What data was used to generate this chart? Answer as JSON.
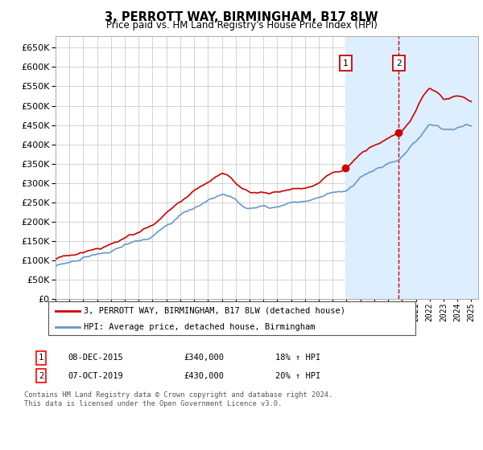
{
  "title": "3, PERROTT WAY, BIRMINGHAM, B17 8LW",
  "subtitle": "Price paid vs. HM Land Registry's House Price Index (HPI)",
  "ylim": [
    0,
    680000
  ],
  "yticks": [
    0,
    50000,
    100000,
    150000,
    200000,
    250000,
    300000,
    350000,
    400000,
    450000,
    500000,
    550000,
    600000,
    650000
  ],
  "xlim_min": 1995,
  "xlim_max": 2025.5,
  "sale1_x": 2015.92,
  "sale1_y": 340000,
  "sale2_x": 2019.77,
  "sale2_y": 430000,
  "legend_line1": "3, PERROTT WAY, BIRMINGHAM, B17 8LW (detached house)",
  "legend_line2": "HPI: Average price, detached house, Birmingham",
  "table_row1": [
    "1",
    "08-DEC-2015",
    "£340,000",
    "18% ↑ HPI"
  ],
  "table_row2": [
    "2",
    "07-OCT-2019",
    "£430,000",
    "20% ↑ HPI"
  ],
  "footnote1": "Contains HM Land Registry data © Crown copyright and database right 2024.",
  "footnote2": "This data is licensed under the Open Government Licence v3.0.",
  "hpi_color": "#6699cc",
  "price_color": "#cc0000",
  "vline_color": "#cc0000",
  "highlight_color": "#ddeeff",
  "grid_color": "#cccccc",
  "bg_color": "#ffffff"
}
